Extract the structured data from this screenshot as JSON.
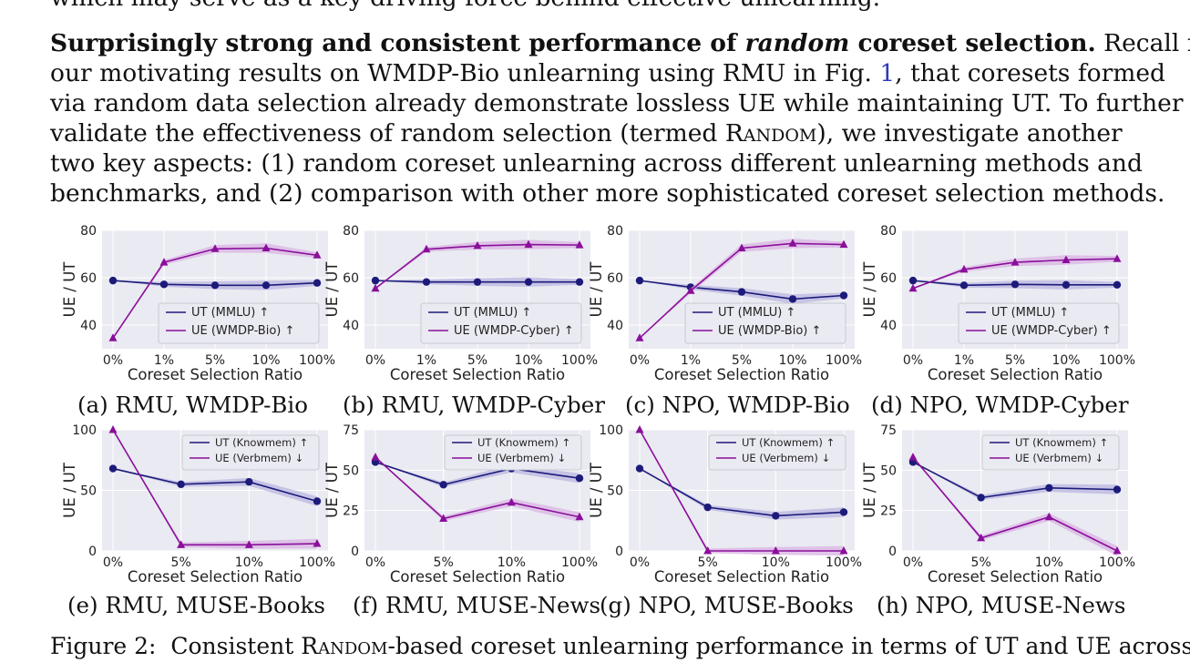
{
  "text": {
    "top_line": "which may serve as a key driving force behind effective unlearning.",
    "para_bold": "Surprisingly strong and consistent performance of ",
    "para_bold_italic": "random",
    "para_bold_end": " coreset selection.",
    "l1_rest": " Recall from",
    "l2_a": "our motivating results on WMDP-Bio unlearning using RMU in Fig. ",
    "l2_ref": "1",
    "l2_b": ", that coresets formed",
    "l3": "via random data selection already demonstrate lossless UE while maintaining UT. To further",
    "l4_a": "validate the effectiveness of random selection (termed ",
    "l4_sc": "Random",
    "l4_b": "), we investigate another",
    "l5": "two key aspects: (1) random coreset unlearning across different unlearning methods and",
    "l6": "benchmarks, and (2) comparison with other more sophisticated coreset selection methods.",
    "fig_label": "Figure 2:",
    "fig_a": "Consistent ",
    "fig_sc": "Random",
    "fig_b": "-based coreset unlearning performance in terms of UT and UE across"
  },
  "colors": {
    "ut": "#1c1b7a",
    "ue": "#8a0f9a",
    "bg": "#eaeaf2",
    "grid": "#ffffff",
    "band_ut": "#b9b6e0",
    "band_ue": "#d9b3e3"
  },
  "chart_data": [
    {
      "type": "line",
      "caption": "(a) RMU, WMDP-Bio",
      "x": [
        "0%",
        "1%",
        "5%",
        "10%",
        "100%"
      ],
      "xlabel": "Coreset Selection Ratio",
      "ylabel": "UE / UT",
      "ylim": [
        30,
        80
      ],
      "yticks": [
        40,
        60,
        80
      ],
      "legend_loc": "lower-right",
      "series": [
        {
          "name": "UT (MMLU) ↑",
          "values": [
            58.8,
            57.2,
            56.8,
            56.8,
            57.8
          ]
        },
        {
          "name": "UE (WMDP-Bio) ↑",
          "values": [
            34.5,
            66.5,
            72.2,
            72.5,
            69.5
          ]
        }
      ]
    },
    {
      "type": "line",
      "caption": "(b) RMU, WMDP-Cyber",
      "x": [
        "0%",
        "1%",
        "5%",
        "10%",
        "100%"
      ],
      "xlabel": "Coreset Selection Ratio",
      "ylabel": "UE / UT",
      "ylim": [
        30,
        80
      ],
      "yticks": [
        40,
        60,
        80
      ],
      "legend_loc": "lower-right",
      "series": [
        {
          "name": "UT (MMLU) ↑",
          "values": [
            58.8,
            58.2,
            58.2,
            58.2,
            58.2
          ]
        },
        {
          "name": "UE (WMDP-Cyber) ↑",
          "values": [
            55.5,
            72.0,
            73.5,
            74.0,
            73.8
          ]
        }
      ]
    },
    {
      "type": "line",
      "caption": "(c) NPO, WMDP-Bio",
      "x": [
        "0%",
        "1%",
        "5%",
        "10%",
        "100%"
      ],
      "xlabel": "Coreset Selection Ratio",
      "ylabel": "UE / UT",
      "ylim": [
        30,
        80
      ],
      "yticks": [
        40,
        60,
        80
      ],
      "legend_loc": "lower-right",
      "series": [
        {
          "name": "UT (MMLU) ↑",
          "values": [
            58.8,
            56.0,
            54.0,
            51.0,
            52.5
          ]
        },
        {
          "name": "UE (WMDP-Bio) ↑",
          "values": [
            34.5,
            54.5,
            72.5,
            74.5,
            74.0
          ]
        }
      ]
    },
    {
      "type": "line",
      "caption": "(d) NPO, WMDP-Cyber",
      "x": [
        "0%",
        "1%",
        "5%",
        "10%",
        "100%"
      ],
      "xlabel": "Coreset Selection Ratio",
      "ylabel": "UE / UT",
      "ylim": [
        30,
        80
      ],
      "yticks": [
        40,
        60,
        80
      ],
      "legend_loc": "lower-right",
      "series": [
        {
          "name": "UT (MMLU) ↑",
          "values": [
            58.8,
            56.8,
            57.2,
            57.0,
            57.0
          ]
        },
        {
          "name": "UE (WMDP-Cyber) ↑",
          "values": [
            55.5,
            63.5,
            66.5,
            67.5,
            68.0
          ]
        }
      ]
    },
    {
      "type": "line",
      "caption": "(e) RMU, MUSE-Books",
      "x": [
        "0%",
        "5%",
        "10%",
        "100%"
      ],
      "xlabel": "Coreset Selection Ratio",
      "ylabel": "UE / UT",
      "ylim": [
        0,
        100
      ],
      "yticks": [
        0,
        50,
        100
      ],
      "legend_loc": "top-right",
      "series": [
        {
          "name": "UT (Knowmem) ↑",
          "values": [
            68,
            55,
            57,
            41
          ]
        },
        {
          "name": "UE (Verbmem) ↓",
          "values": [
            100,
            5,
            5,
            6
          ]
        }
      ]
    },
    {
      "type": "line",
      "caption": "(f) RMU, MUSE-News",
      "x": [
        "0%",
        "5%",
        "10%",
        "100%"
      ],
      "xlabel": "Coreset Selection Ratio",
      "ylabel": "UE / UT",
      "ylim": [
        0,
        75
      ],
      "yticks": [
        0,
        25,
        50,
        75
      ],
      "legend_loc": "top-right",
      "series": [
        {
          "name": "UT (Knowmem) ↑",
          "values": [
            55,
            41,
            51,
            45
          ]
        },
        {
          "name": "UE (Verbmem) ↓",
          "values": [
            58,
            20,
            30,
            21
          ]
        }
      ]
    },
    {
      "type": "line",
      "caption": "(g) NPO, MUSE-Books",
      "x": [
        "0%",
        "5%",
        "10%",
        "100%"
      ],
      "xlabel": "Coreset Selection Ratio",
      "ylabel": "UE / UT",
      "ylim": [
        0,
        100
      ],
      "yticks": [
        0,
        50,
        100
      ],
      "legend_loc": "top-right",
      "series": [
        {
          "name": "UT (Knowmem) ↑",
          "values": [
            68,
            36,
            29,
            32
          ]
        },
        {
          "name": "UE (Verbmem) ↓",
          "values": [
            100,
            0,
            0,
            0
          ]
        }
      ]
    },
    {
      "type": "line",
      "caption": "(h) NPO, MUSE-News",
      "x": [
        "0%",
        "5%",
        "10%",
        "100%"
      ],
      "xlabel": "Coreset Selection Ratio",
      "ylabel": "UE / UT",
      "ylim": [
        0,
        75
      ],
      "yticks": [
        0,
        25,
        50,
        75
      ],
      "legend_loc": "top-right",
      "series": [
        {
          "name": "UT (Knowmem) ↑",
          "values": [
            55,
            33,
            39,
            38
          ]
        },
        {
          "name": "UE (Verbmem) ↓",
          "values": [
            58,
            8,
            21,
            0
          ]
        }
      ]
    }
  ]
}
